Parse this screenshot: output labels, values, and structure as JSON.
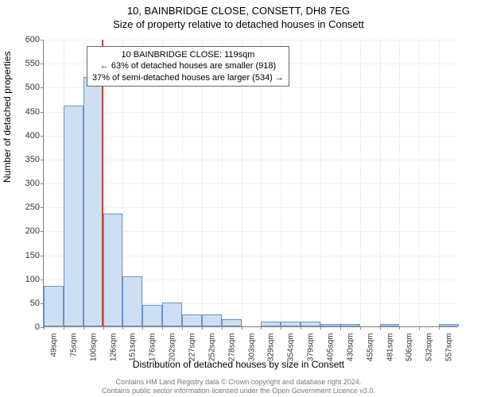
{
  "title_main": "10, BAINBRIDGE CLOSE, CONSETT, DH8 7EG",
  "title_sub": "Size of property relative to detached houses in Consett",
  "ylabel": "Number of detached properties",
  "xlabel": "Distribution of detached houses by size in Consett",
  "chart": {
    "type": "histogram",
    "ylim": [
      0,
      600
    ],
    "ytick_step": 50,
    "xticks": [
      "49sqm",
      "75sqm",
      "100sqm",
      "126sqm",
      "151sqm",
      "176sqm",
      "202sqm",
      "227sqm",
      "252sqm",
      "278sqm",
      "303sqm",
      "329sqm",
      "354sqm",
      "379sqm",
      "405sqm",
      "430sqm",
      "455sqm",
      "481sqm",
      "506sqm",
      "532sqm",
      "557sqm"
    ],
    "bars": [
      85,
      460,
      520,
      235,
      105,
      45,
      50,
      25,
      25,
      15,
      0,
      10,
      10,
      10,
      5,
      5,
      0,
      5,
      0,
      0,
      5
    ],
    "bar_fill": "#cddff2",
    "bar_stroke": "#6b93c4",
    "grid_color": "#eef0f4",
    "background": "#ffffff",
    "marker_color": "#cc443a",
    "marker_after_bin": 2
  },
  "annotation": {
    "line1": "10 BAINBRIDGE CLOSE: 119sqm",
    "line2": "← 63% of detached houses are smaller (918)",
    "line3": "37% of semi-detached houses are larger (534) →",
    "border": "#666666",
    "background": "#ffffff"
  },
  "footer": {
    "line1": "Contains HM Land Registry data © Crown copyright and database right 2024.",
    "line2": "Contains public sector information licensed under the Open Government Licence v3.0."
  }
}
